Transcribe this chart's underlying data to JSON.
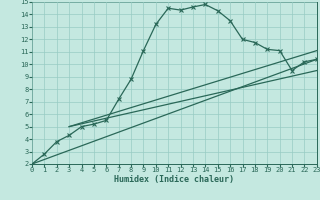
{
  "bg_color": "#c4e8e0",
  "line_color": "#2a6858",
  "grid_color": "#98ccc4",
  "xlabel": "Humidex (Indice chaleur)",
  "xlim": [
    0,
    23
  ],
  "ylim": [
    2,
    15
  ],
  "xticks": [
    0,
    1,
    2,
    3,
    4,
    5,
    6,
    7,
    8,
    9,
    10,
    11,
    12,
    13,
    14,
    15,
    16,
    17,
    18,
    19,
    20,
    21,
    22,
    23
  ],
  "yticks": [
    2,
    3,
    4,
    5,
    6,
    7,
    8,
    9,
    10,
    11,
    12,
    13,
    14,
    15
  ],
  "curve1_x": [
    0,
    1,
    2,
    3,
    4,
    5,
    6,
    7,
    8,
    9,
    10,
    11,
    12,
    13,
    14,
    15,
    16,
    17,
    18,
    19,
    20,
    21,
    22,
    23
  ],
  "curve1_y": [
    2.0,
    2.8,
    3.8,
    4.3,
    5.0,
    5.2,
    5.5,
    7.2,
    8.8,
    11.1,
    13.2,
    14.5,
    14.35,
    14.6,
    14.8,
    14.3,
    13.5,
    12.0,
    11.75,
    11.2,
    11.1,
    9.5,
    10.2,
    10.4
  ],
  "line2_x": [
    0,
    23
  ],
  "line2_y": [
    2.0,
    10.4
  ],
  "line3_x": [
    3,
    23
  ],
  "line3_y": [
    5.0,
    11.1
  ],
  "line4_x": [
    3,
    23
  ],
  "line4_y": [
    5.0,
    9.5
  ]
}
